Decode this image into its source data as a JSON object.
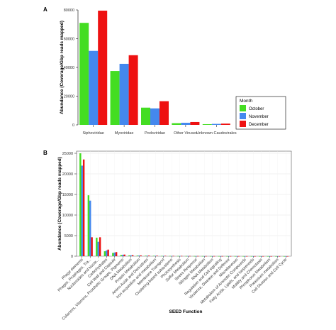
{
  "panel_a_label": "A",
  "panel_b_label": "B",
  "colors": {
    "October": "#44dd22",
    "November": "#4488ee",
    "December": "#ee1111"
  },
  "chart_data": [
    {
      "type": "bar",
      "categories": [
        "Siphoviridae",
        "Myoviridae",
        "Podoviridae",
        "Other Viruses",
        "Unknown Caudovirales"
      ],
      "series": [
        {
          "name": "October",
          "values": [
            71000,
            37500,
            12000,
            1200,
            500
          ]
        },
        {
          "name": "November",
          "values": [
            51500,
            42500,
            11500,
            1500,
            700
          ]
        },
        {
          "name": "December",
          "values": [
            79500,
            48500,
            16500,
            2000,
            900
          ]
        }
      ],
      "xlabel": "",
      "ylabel": "Abundance (Coverage/Gbp reads mapped)",
      "ylim": [
        0,
        80000
      ],
      "yticks": [
        0,
        20000,
        40000,
        60000,
        80000
      ],
      "legend": {
        "title": "Month",
        "placement": "right"
      },
      "grid": false
    },
    {
      "type": "bar",
      "categories": [
        "Phage elements",
        "Phages, Prophages, Tra...",
        "Nucleosides and Nucle...",
        "Carbohydrates",
        "Cell Wall and Capsule",
        "Cofactors, Vitamins, Prosthetic Groups, Pigments",
        "DNA Metabolism",
        "Protein Metabolism",
        "Amino Acids and Derivatives",
        "Iron acquisition and metabolism",
        "Membrane Transport",
        "Clustering-based subsystems",
        "Photosynthesis",
        "Sulfur Metabolism",
        "Stress Response",
        "Nitrogen Metabolism",
        "RNA Metabolism",
        "Regulation and Cell signaling",
        "Virulence, Disease and Defense",
        "Miscellaneous",
        "Metabolism of Aromatic Compounds",
        "Fatty Acids, Lipids, and Isoprenoids",
        "Motility and Chemotaxis",
        "Phosphorus Metabolism",
        "Potassium metabolism",
        "Cell Division and Cell Cycle"
      ],
      "series": [
        {
          "name": "October",
          "values": [
            25000,
            14800,
            4500,
            1200,
            800,
            300,
            200,
            150,
            120,
            100,
            80,
            70,
            60,
            50,
            40,
            35,
            30,
            28,
            25,
            22,
            20,
            18,
            15,
            12,
            10,
            8
          ]
        },
        {
          "name": "November",
          "values": [
            22000,
            13500,
            3500,
            1400,
            900,
            350,
            220,
            170,
            130,
            110,
            85,
            75,
            65,
            55,
            45,
            38,
            32,
            30,
            27,
            24,
            21,
            19,
            16,
            13,
            11,
            9
          ]
        },
        {
          "name": "December",
          "values": [
            23500,
            4600,
            4600,
            1600,
            1000,
            400,
            250,
            190,
            150,
            120,
            95,
            80,
            70,
            60,
            50,
            42,
            36,
            33,
            30,
            26,
            23,
            20,
            17,
            14,
            12,
            10
          ]
        }
      ],
      "xlabel": "SEED Function",
      "ylabel": "Abundance (Coverage/Gbp reads mapped)",
      "ylim": [
        0,
        25000
      ],
      "yticks": [
        0,
        5000,
        10000,
        15000,
        20000,
        25000
      ],
      "grid": true
    }
  ]
}
